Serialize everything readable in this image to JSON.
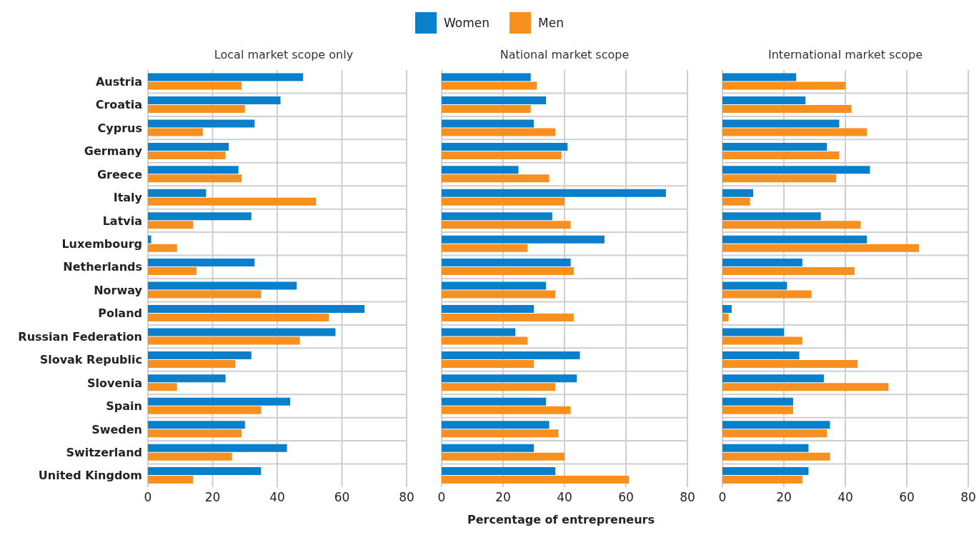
{
  "chart_data": [
    {
      "type": "bar",
      "orientation": "horizontal",
      "title": "Local market scope only",
      "legend": "top",
      "grid": true,
      "categories": [
        "Austria",
        "Croatia",
        "Cyprus",
        "Germany",
        "Greece",
        "Italy",
        "Latvia",
        "Luxembourg",
        "Netherlands",
        "Norway",
        "Poland",
        "Russian Federation",
        "Slovak Republic",
        "Slovenia",
        "Spain",
        "Sweden",
        "Switzerland",
        "United Kingdom"
      ],
      "series": [
        {
          "name": "Women",
          "color": "#0a7fcc",
          "values": [
            48,
            41,
            33,
            25,
            28,
            18,
            32,
            1,
            33,
            46,
            67,
            58,
            32,
            24,
            44,
            30,
            43,
            35
          ]
        },
        {
          "name": "Men",
          "color": "#f7901e",
          "values": [
            29,
            30,
            17,
            24,
            29,
            52,
            14,
            9,
            15,
            35,
            56,
            47,
            27,
            9,
            35,
            29,
            26,
            14
          ]
        }
      ],
      "xlim": [
        0,
        80
      ],
      "xticks": [
        0,
        20,
        40,
        60,
        80
      ]
    },
    {
      "type": "bar",
      "orientation": "horizontal",
      "title": "National market scope",
      "xlabel": "Percentage of entrepreneurs",
      "grid": true,
      "tick_labels": "x",
      "categories": [
        "Austria",
        "Croatia",
        "Cyprus",
        "Germany",
        "Greece",
        "Italy",
        "Latvia",
        "Luxembourg",
        "Netherlands",
        "Norway",
        "Poland",
        "Russian Federation",
        "Slovak Republic",
        "Slovenia",
        "Spain",
        "Sweden",
        "Switzerland",
        "United Kingdom"
      ],
      "series": [
        {
          "name": "Women",
          "color": "#0a7fcc",
          "values": [
            29,
            34,
            30,
            41,
            25,
            73,
            36,
            53,
            42,
            34,
            30,
            24,
            45,
            44,
            34,
            35,
            30,
            37
          ]
        },
        {
          "name": "Men",
          "color": "#f7901e",
          "values": [
            31,
            29,
            37,
            39,
            35,
            40,
            42,
            28,
            43,
            37,
            43,
            28,
            30,
            37,
            42,
            38,
            40,
            61
          ]
        }
      ],
      "xlim": [
        0,
        80
      ],
      "xticks": [
        0,
        20,
        40,
        60,
        80
      ]
    },
    {
      "type": "bar",
      "orientation": "horizontal",
      "title": "International market scope",
      "grid": true,
      "tick_labels": "x",
      "categories": [
        "Austria",
        "Croatia",
        "Cyprus",
        "Germany",
        "Greece",
        "Italy",
        "Latvia",
        "Luxembourg",
        "Netherlands",
        "Norway",
        "Poland",
        "Russian Federation",
        "Slovak Republic",
        "Slovenia",
        "Spain",
        "Sweden",
        "Switzerland",
        "United Kingdom"
      ],
      "series": [
        {
          "name": "Women",
          "color": "#0a7fcc",
          "values": [
            24,
            27,
            38,
            34,
            48,
            10,
            32,
            47,
            26,
            21,
            3,
            20,
            25,
            33,
            23,
            35,
            28,
            28
          ]
        },
        {
          "name": "Men",
          "color": "#f7901e",
          "values": [
            40,
            42,
            47,
            38,
            37,
            9,
            45,
            64,
            43,
            29,
            2,
            26,
            44,
            54,
            23,
            34,
            35,
            26
          ]
        }
      ],
      "xlim": [
        0,
        80
      ],
      "xticks": [
        0,
        20,
        40,
        60,
        80
      ]
    }
  ]
}
